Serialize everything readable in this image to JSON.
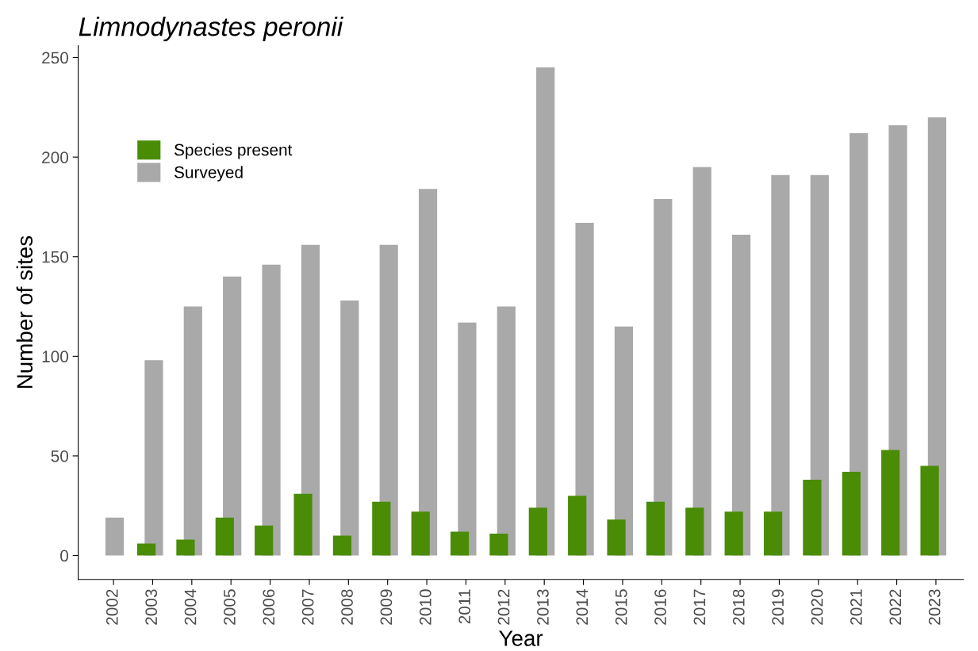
{
  "chart_data": {
    "type": "bar",
    "title": "Limnodynastes peronii",
    "xlabel": "Year",
    "ylabel": "Number of sites",
    "categories": [
      "2002",
      "2003",
      "2004",
      "2005",
      "2006",
      "2007",
      "2008",
      "2009",
      "2010",
      "2011",
      "2012",
      "2013",
      "2014",
      "2015",
      "2016",
      "2017",
      "2018",
      "2019",
      "2020",
      "2021",
      "2022",
      "2023"
    ],
    "series": [
      {
        "name": "Species present",
        "color": "#4a8c06",
        "values": [
          0,
          6,
          8,
          19,
          15,
          31,
          10,
          27,
          22,
          12,
          11,
          24,
          30,
          18,
          27,
          24,
          22,
          22,
          38,
          42,
          53,
          45
        ]
      },
      {
        "name": "Surveyed",
        "color": "#a9a9a9",
        "values": [
          19,
          98,
          125,
          140,
          146,
          156,
          128,
          156,
          184,
          117,
          125,
          245,
          167,
          115,
          179,
          195,
          161,
          191,
          191,
          212,
          216,
          220
        ]
      }
    ],
    "ylim": [
      -12,
      256
    ],
    "yticks": [
      0,
      50,
      100,
      150,
      200,
      250
    ],
    "grid": false,
    "legend": "top left"
  }
}
